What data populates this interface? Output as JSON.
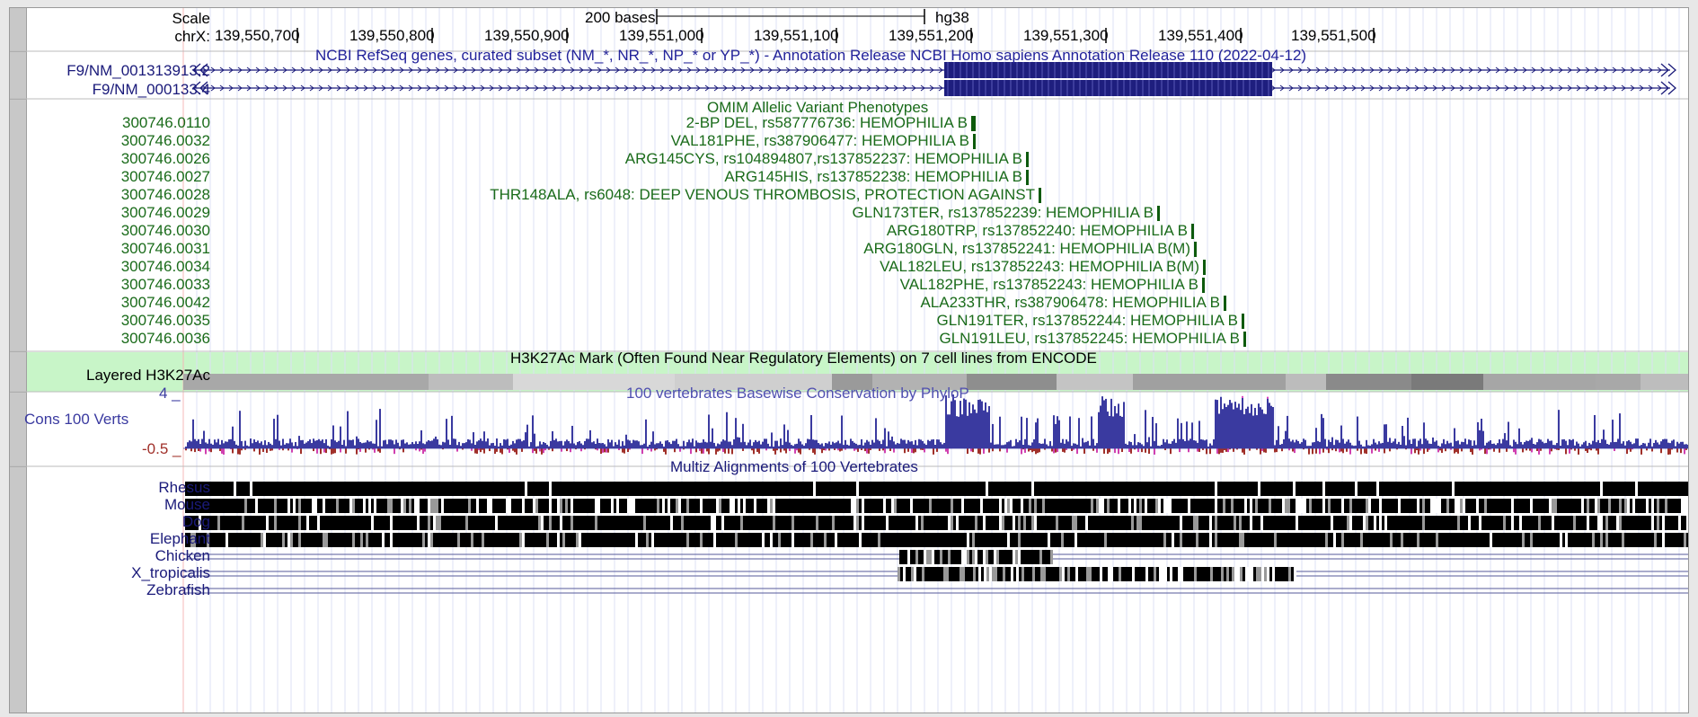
{
  "ruler": {
    "scale_label": "Scale",
    "chrom_label": "chrX:",
    "scale_bar_text": "200 bases",
    "assembly": "hg38",
    "positions": [
      "139,550,700",
      "139,550,800",
      "139,550,900",
      "139,551,000",
      "139,551,100",
      "139,551,200",
      "139,551,300",
      "139,551,400",
      "139,551,500"
    ]
  },
  "refseq": {
    "title": "NCBI RefSeq genes, curated subset (NM_*, NR_*, NP_* or YP_*) - Annotation Release NCBI Homo sapiens Annotation Release 110 (2022-04-12)",
    "transcripts": [
      "F9/NM_001313913.2",
      "F9/NM_000133.4"
    ],
    "color": "#1a1a7a"
  },
  "omim": {
    "title": "OMIM Allelic Variant Phenotypes",
    "color": "#1a6b1a",
    "items": [
      {
        "id": "300746.0110",
        "text": "2-BP DEL, rs587776736: HEMOPHILIA B"
      },
      {
        "id": "300746.0032",
        "text": "VAL181PHE, rs387906477: HEMOPHILIA B"
      },
      {
        "id": "300746.0026",
        "text": "ARG145CYS, rs104894807,rs137852237: HEMOPHILIA B"
      },
      {
        "id": "300746.0027",
        "text": "ARG145HIS, rs137852238: HEMOPHILIA B"
      },
      {
        "id": "300746.0028",
        "text": "THR148ALA, rs6048: DEEP VENOUS THROMBOSIS, PROTECTION AGAINST"
      },
      {
        "id": "300746.0029",
        "text": "GLN173TER, rs137852239: HEMOPHILIA B"
      },
      {
        "id": "300746.0030",
        "text": "ARG180TRP, rs137852240: HEMOPHILIA B"
      },
      {
        "id": "300746.0031",
        "text": "ARG180GLN, rs137852241: HEMOPHILIA B(M)"
      },
      {
        "id": "300746.0034",
        "text": "VAL182LEU, rs137852243: HEMOPHILIA B(M)"
      },
      {
        "id": "300746.0033",
        "text": "VAL182PHE, rs137852243: HEMOPHILIA B"
      },
      {
        "id": "300746.0042",
        "text": "ALA233THR, rs387906478: HEMOPHILIA B"
      },
      {
        "id": "300746.0035",
        "text": "GLN191TER, rs137852244: HEMOPHILIA B"
      },
      {
        "id": "300746.0036",
        "text": "GLN191LEU, rs137852245: HEMOPHILIA B"
      }
    ]
  },
  "h3k27ac": {
    "title": "H3K27Ac Mark (Often Found Near Regulatory Elements) on 7 cell lines from ENCODE",
    "label": "Layered H3K27Ac",
    "bg": "#c8f5c8"
  },
  "phylop": {
    "title": "100 vertebrates Basewise Conservation by PhyloP",
    "label": "Cons 100 Verts",
    "max": "4 _",
    "min": "-0.5 _",
    "pos_color": "#3a3aa0",
    "neg_color": "#a0302a"
  },
  "multiz": {
    "title": "Multiz Alignments of 100 Vertebrates",
    "species": [
      "Rhesus",
      "Mouse",
      "Dog",
      "Elephant",
      "Chicken",
      "X_tropicalis",
      "Zebrafish"
    ]
  }
}
